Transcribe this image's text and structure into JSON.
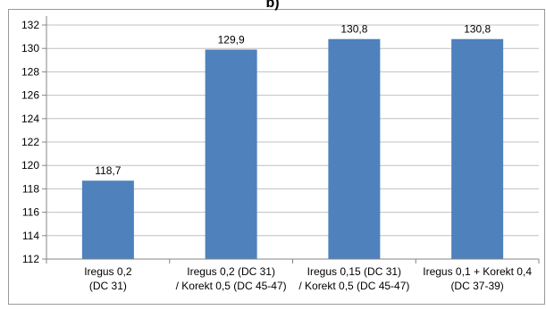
{
  "chart_data": {
    "type": "bar",
    "title_fragment": "b)",
    "categories": [
      [
        "Iregus 0,2",
        "(DC 31)"
      ],
      [
        "Iregus 0,2 (DC 31)",
        "/ Korekt 0,5 (DC 45-47)"
      ],
      [
        "Iregus 0,15 (DC 31)",
        "/ Korekt 0,5 (DC 45-47)"
      ],
      [
        "Iregus 0,1 + Korekt 0,4",
        "(DC 37-39)"
      ]
    ],
    "values": [
      118.7,
      129.9,
      130.8,
      130.8
    ],
    "data_labels": [
      "118,7",
      "129,9",
      "130,8",
      "130,8"
    ],
    "y_ticks": [
      "112",
      "114",
      "116",
      "118",
      "120",
      "122",
      "124",
      "126",
      "128",
      "130",
      "132"
    ],
    "ylim": [
      112,
      132
    ],
    "grid": true,
    "legend": "none",
    "bar_color": "#4f81bd",
    "grid_color": "#c0c0c0",
    "axis_color": "#868686"
  }
}
